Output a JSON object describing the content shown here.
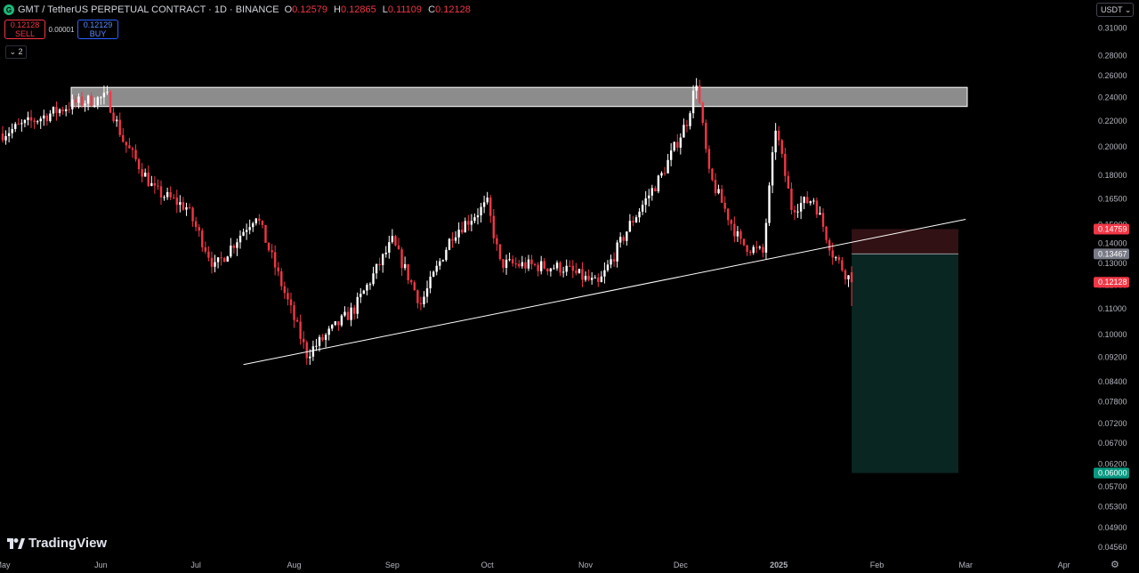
{
  "header": {
    "symbol": "GMT / TetherUS PERPETUAL CONTRACT · 1D · BINANCE",
    "open_label": "O",
    "open": "0.12579",
    "high_label": "H",
    "high": "0.12865",
    "low_label": "L",
    "low": "0.11109",
    "close_label": "C",
    "close": "0.12128"
  },
  "trade": {
    "sell_price": "0.12128",
    "sell_label": "SELL",
    "spread": "0.00001",
    "buy_price": "0.12129",
    "buy_label": "BUY"
  },
  "indicators_toggle": "⌄ 2",
  "currency": "USDT",
  "watermark": "TradingView",
  "colors": {
    "up": "#ffffff",
    "down": "#f23645",
    "bg": "#000000",
    "price_tag": "#f23645",
    "stop_zone": "#3a1416",
    "target_zone": "#0a2a26",
    "target_tag": "#089981",
    "entry_tag": "#787b86"
  },
  "chart_data": {
    "type": "candlestick",
    "log_scale": true,
    "yaxis_ticks": [
      "0.31000",
      "0.28000",
      "0.26000",
      "0.24000",
      "0.22000",
      "0.20000",
      "0.18000",
      "0.16500",
      "0.15000",
      "0.14000",
      "0.13000",
      "0.12000",
      "0.11000",
      "0.10000",
      "0.09200",
      "0.08400",
      "0.07800",
      "0.07200",
      "0.06700",
      "0.06200",
      "0.05700",
      "0.05300",
      "0.04900",
      "0.04560"
    ],
    "xaxis_ticks": [
      "May",
      "Jun",
      "Jul",
      "Aug",
      "Sep",
      "Oct",
      "Nov",
      "Dec",
      "2025",
      "Feb",
      "Mar",
      "Apr"
    ],
    "price_tags": {
      "stop": "0.14759",
      "entry": "0.13467",
      "last": "0.12128",
      "target": "0.06000"
    },
    "key_points": [
      {
        "date": "2024-05-01",
        "price": 0.21
      },
      {
        "date": "2024-05-24",
        "price": 0.235
      },
      {
        "date": "2024-06-03",
        "price": 0.24
      },
      {
        "date": "2024-06-08",
        "price": 0.205
      },
      {
        "date": "2024-06-18",
        "price": 0.17
      },
      {
        "date": "2024-06-28",
        "price": 0.16
      },
      {
        "date": "2024-07-07",
        "price": 0.128
      },
      {
        "date": "2024-07-20",
        "price": 0.156
      },
      {
        "date": "2024-08-05",
        "price": 0.093
      },
      {
        "date": "2024-08-20",
        "price": 0.11
      },
      {
        "date": "2024-09-01",
        "price": 0.141
      },
      {
        "date": "2024-09-10",
        "price": 0.112
      },
      {
        "date": "2024-09-20",
        "price": 0.145
      },
      {
        "date": "2024-10-01",
        "price": 0.162
      },
      {
        "date": "2024-10-05",
        "price": 0.13
      },
      {
        "date": "2024-10-25",
        "price": 0.128
      },
      {
        "date": "2024-11-05",
        "price": 0.12
      },
      {
        "date": "2024-11-15",
        "price": 0.15
      },
      {
        "date": "2024-11-25",
        "price": 0.18
      },
      {
        "date": "2024-12-03",
        "price": 0.22
      },
      {
        "date": "2024-12-06",
        "price": 0.255
      },
      {
        "date": "2024-12-10",
        "price": 0.18
      },
      {
        "date": "2024-12-20",
        "price": 0.14
      },
      {
        "date": "2024-12-27",
        "price": 0.135
      },
      {
        "date": "2024-12-31",
        "price": 0.215
      },
      {
        "date": "2025-01-05",
        "price": 0.16
      },
      {
        "date": "2025-01-12",
        "price": 0.165
      },
      {
        "date": "2025-01-18",
        "price": 0.135
      },
      {
        "date": "2025-01-24",
        "price": 0.1213
      }
    ],
    "resistance_zone": {
      "low": 0.232,
      "high": 0.249,
      "from": "2024-05-24",
      "to": "2025-03-01"
    },
    "trendline": [
      {
        "date": "2024-07-16",
        "price": 0.0895
      },
      {
        "date": "2025-03-01",
        "price": 0.153
      }
    ],
    "position": {
      "entry": 0.13467,
      "stop": 0.14759,
      "target": 0.06,
      "from": "2025-01-24",
      "to": "2025-03-01"
    }
  }
}
